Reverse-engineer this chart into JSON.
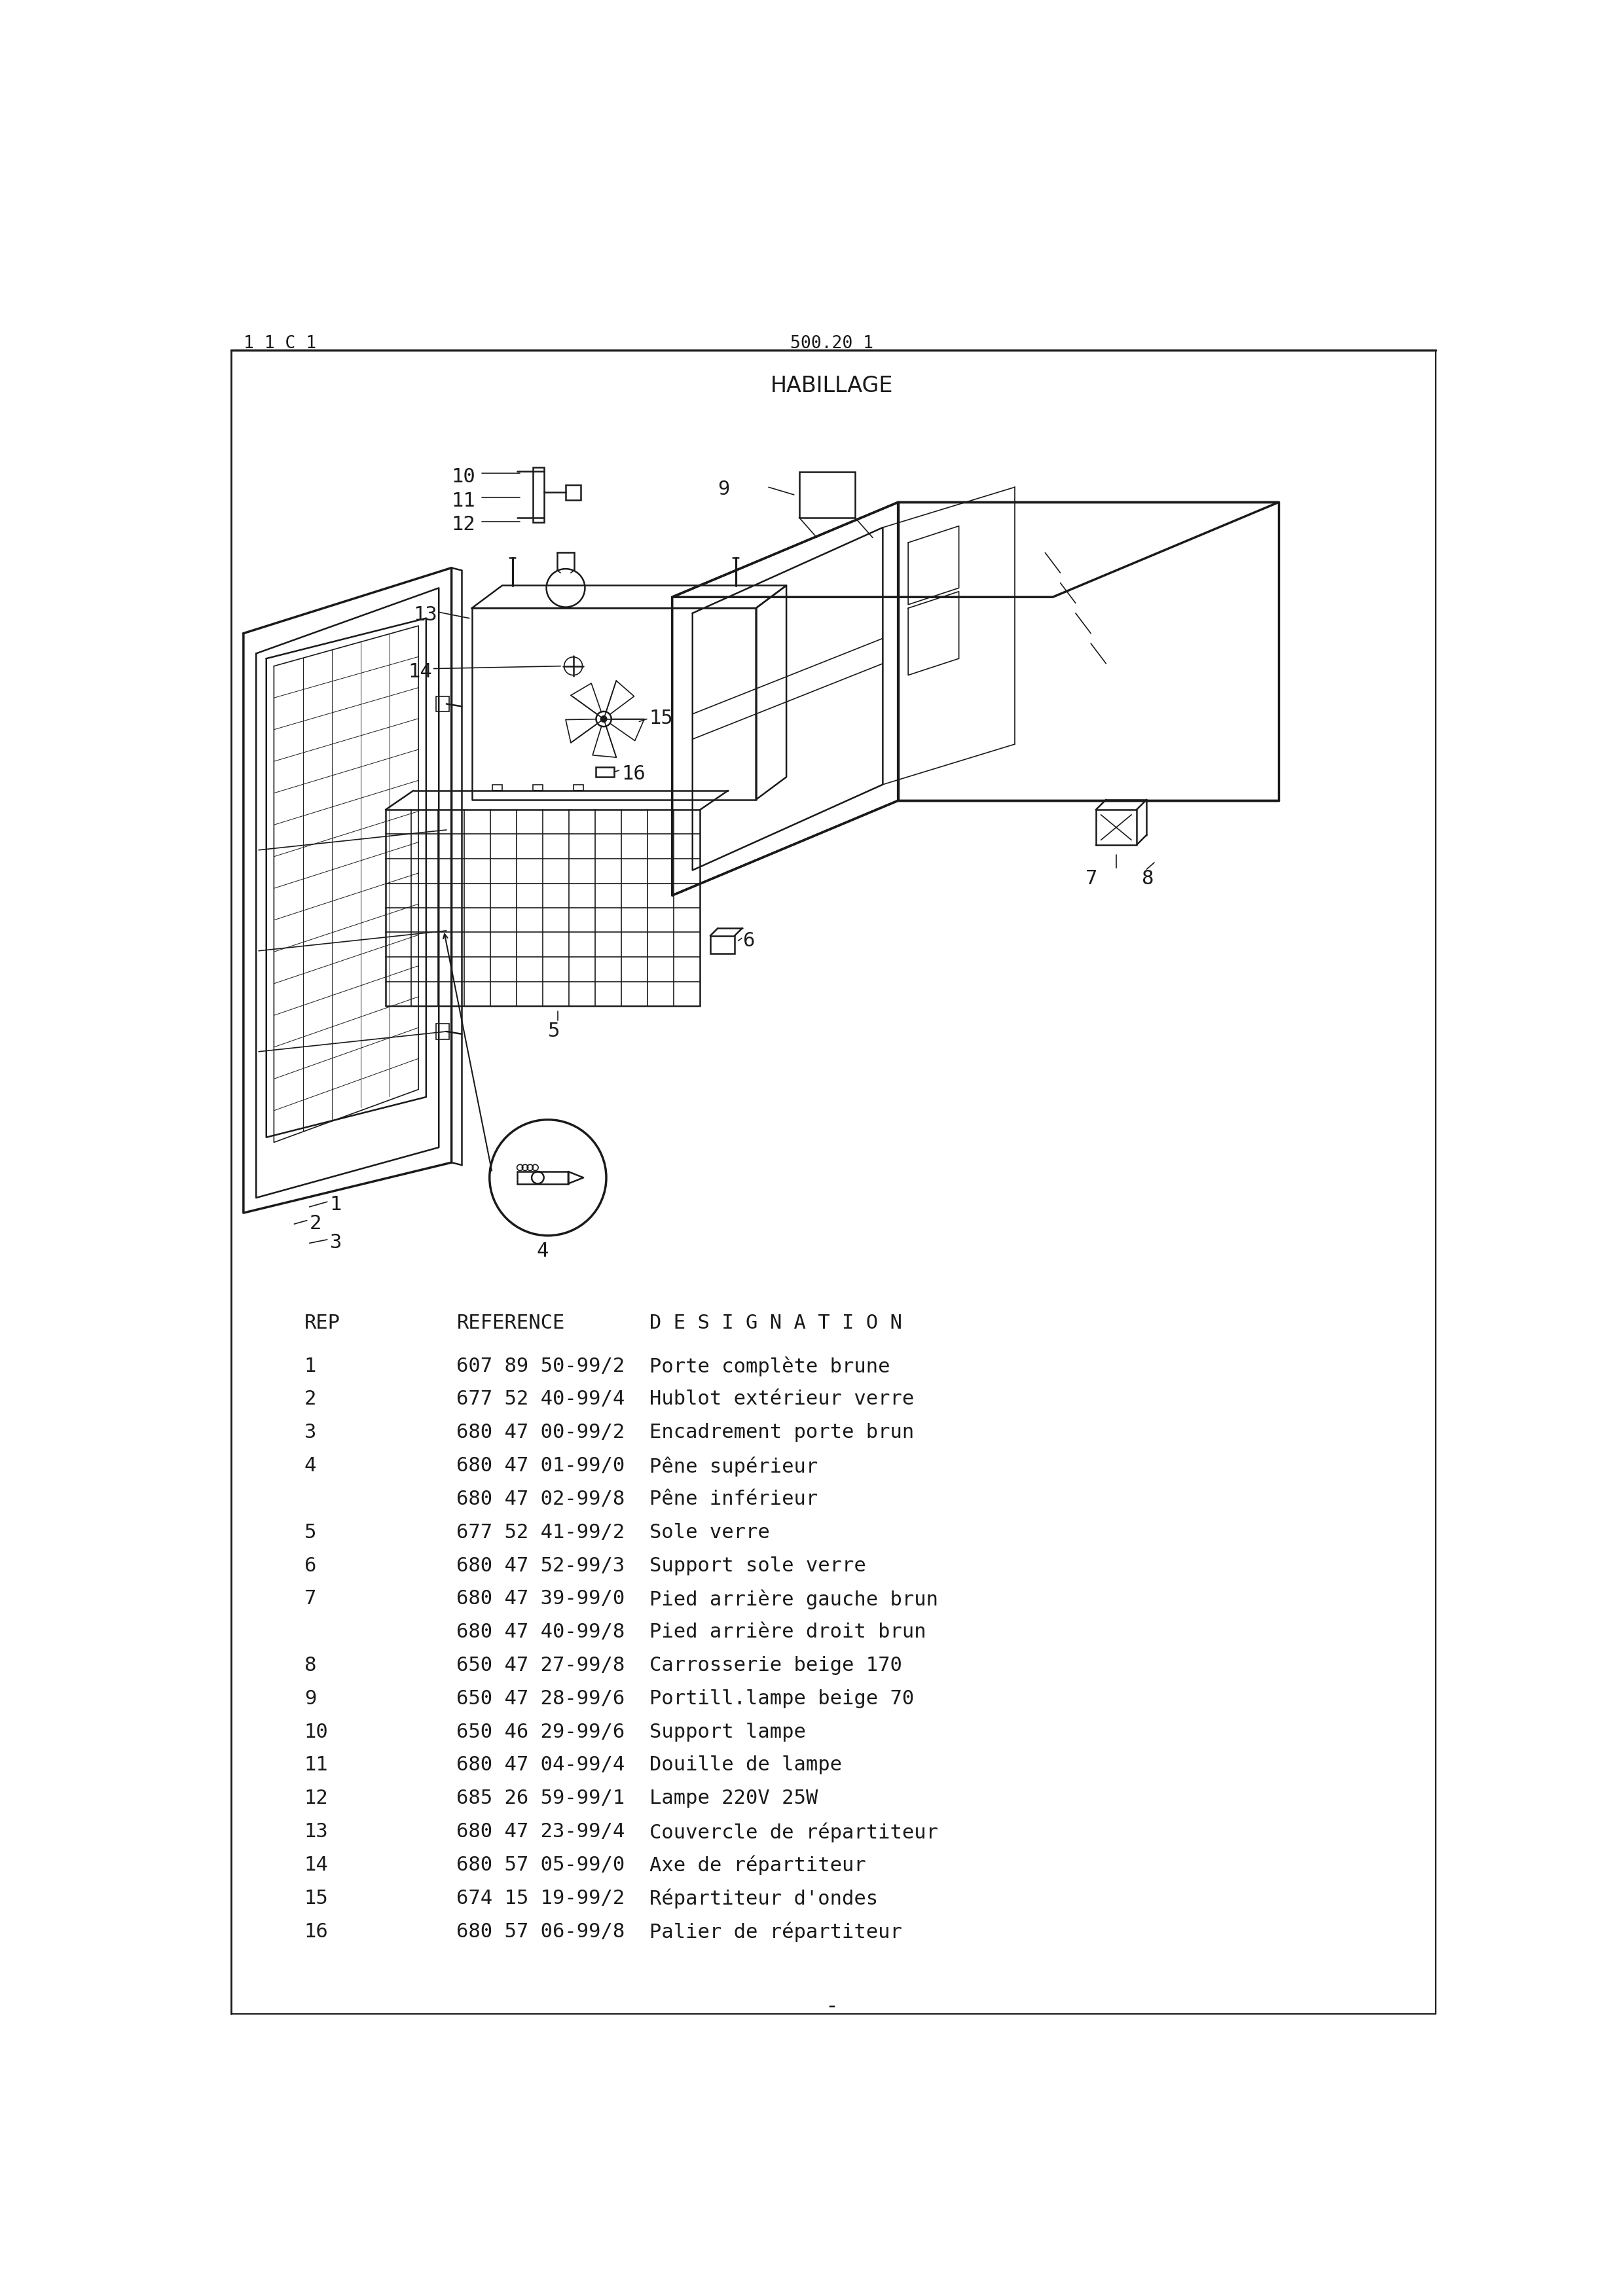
{
  "page_header_left": "1 1 C 1",
  "page_header_center": "500.20 1",
  "section_title": "HABILLAGE",
  "bg_color": "#ffffff",
  "text_color": "#1a1a1a",
  "table_header": [
    "REP",
    "REFERENCE",
    "D E S I G N A T I O N"
  ],
  "parts": [
    {
      "rep": "1",
      "ref": "607 89 50-99/2",
      "desc": "Porte complète brune"
    },
    {
      "rep": "2",
      "ref": "677 52 40-99/4",
      "desc": "Hublot extérieur verre"
    },
    {
      "rep": "3",
      "ref": "680 47 00-99/2",
      "desc": "Encadrement porte brun"
    },
    {
      "rep": "4",
      "ref": "680 47 01-99/0",
      "desc": "Pêne supérieur"
    },
    {
      "rep": "",
      "ref": "680 47 02-99/8",
      "desc": "Pêne inférieur"
    },
    {
      "rep": "5",
      "ref": "677 52 41-99/2",
      "desc": "Sole verre"
    },
    {
      "rep": "6",
      "ref": "680 47 52-99/3",
      "desc": "Support sole verre"
    },
    {
      "rep": "7",
      "ref": "680 47 39-99/0",
      "desc": "Pied arrière gauche brun"
    },
    {
      "rep": "",
      "ref": "680 47 40-99/8",
      "desc": "Pied arrière droit brun"
    },
    {
      "rep": "8",
      "ref": "650 47 27-99/8",
      "desc": "Carrosserie beige 170"
    },
    {
      "rep": "9",
      "ref": "650 47 28-99/6",
      "desc": "Portill.lampe beige 70"
    },
    {
      "rep": "10",
      "ref": "650 46 29-99/6",
      "desc": "Support lampe"
    },
    {
      "rep": "11",
      "ref": "680 47 04-99/4",
      "desc": "Douille de lampe"
    },
    {
      "rep": "12",
      "ref": "685 26 59-99/1",
      "desc": "Lampe 220V 25W"
    },
    {
      "rep": "13",
      "ref": "680 47 23-99/4",
      "desc": "Couvercle de répartiteur"
    },
    {
      "rep": "14",
      "ref": "680 57 05-99/0",
      "desc": "Axe de répartiteur"
    },
    {
      "rep": "15",
      "ref": "674 15 19-99/2",
      "desc": "Répartiteur d'ondes"
    },
    {
      "rep": "16",
      "ref": "680 57 06-99/8",
      "desc": "Palier de répartiteur"
    }
  ],
  "footer_dash": "-",
  "draw_color": "#1a1a1a",
  "thin_lw": 1.2,
  "med_lw": 1.8,
  "thick_lw": 2.5
}
